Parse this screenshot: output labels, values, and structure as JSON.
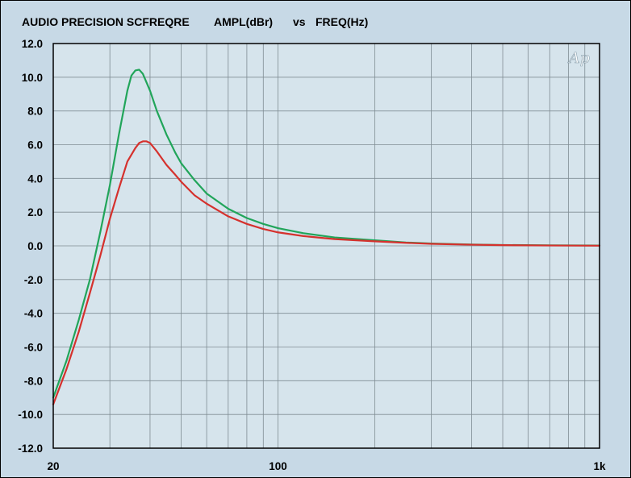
{
  "chart_data": {
    "type": "line",
    "title_parts": [
      "AUDIO PRECISION SCFREQRE",
      "AMPL(dBr)",
      "vs",
      "FREQ(Hz)"
    ],
    "logo": "Ap",
    "x_scale": "log",
    "xlim": [
      20,
      1000
    ],
    "ylim": [
      -12,
      12
    ],
    "x_tick_labels": [
      {
        "value": 20,
        "label": "20"
      },
      {
        "value": 100,
        "label": "100"
      },
      {
        "value": 1000,
        "label": "1k"
      }
    ],
    "y_ticks": [
      12,
      10,
      8,
      6,
      4,
      2,
      0,
      -2,
      -4,
      -6,
      -8,
      -10,
      -12
    ],
    "y_tick_labels": [
      "12.0",
      "10.0",
      "8.0",
      "6.0",
      "4.0",
      "2.0",
      "0.0",
      "-2.0",
      "-4.0",
      "-6.0",
      "-8.0",
      "-10.0",
      "-12.0"
    ],
    "grid": true,
    "x_grid": [
      20,
      30,
      40,
      50,
      60,
      70,
      80,
      90,
      100,
      200,
      300,
      400,
      500,
      600,
      700,
      800,
      900,
      1000
    ],
    "plot_background": "#d6e4ec",
    "grid_color": "#7f8c93",
    "series": [
      {
        "color": "#21a55a",
        "points": [
          [
            20,
            -9.0
          ],
          [
            22,
            -6.8
          ],
          [
            24,
            -4.4
          ],
          [
            26,
            -2.0
          ],
          [
            28,
            0.8
          ],
          [
            30,
            3.6
          ],
          [
            32,
            6.6
          ],
          [
            34,
            9.2
          ],
          [
            35,
            10.1
          ],
          [
            36,
            10.4
          ],
          [
            37,
            10.45
          ],
          [
            38,
            10.2
          ],
          [
            40,
            9.2
          ],
          [
            42,
            8.0
          ],
          [
            45,
            6.6
          ],
          [
            48,
            5.5
          ],
          [
            50,
            4.9
          ],
          [
            55,
            3.9
          ],
          [
            60,
            3.1
          ],
          [
            70,
            2.2
          ],
          [
            80,
            1.65
          ],
          [
            90,
            1.3
          ],
          [
            100,
            1.05
          ],
          [
            120,
            0.75
          ],
          [
            150,
            0.5
          ],
          [
            200,
            0.33
          ],
          [
            250,
            0.2
          ],
          [
            300,
            0.14
          ],
          [
            400,
            0.08
          ],
          [
            500,
            0.05
          ],
          [
            700,
            0.03
          ],
          [
            1000,
            0.02
          ]
        ]
      },
      {
        "color": "#d5312d",
        "points": [
          [
            20,
            -9.4
          ],
          [
            22,
            -7.3
          ],
          [
            24,
            -5.1
          ],
          [
            26,
            -2.8
          ],
          [
            28,
            -0.6
          ],
          [
            30,
            1.6
          ],
          [
            32,
            3.4
          ],
          [
            34,
            5.0
          ],
          [
            36,
            5.8
          ],
          [
            37,
            6.1
          ],
          [
            38,
            6.2
          ],
          [
            39,
            6.2
          ],
          [
            40,
            6.1
          ],
          [
            42,
            5.6
          ],
          [
            45,
            4.8
          ],
          [
            48,
            4.2
          ],
          [
            50,
            3.8
          ],
          [
            55,
            3.0
          ],
          [
            60,
            2.5
          ],
          [
            70,
            1.75
          ],
          [
            80,
            1.3
          ],
          [
            90,
            1.0
          ],
          [
            100,
            0.8
          ],
          [
            120,
            0.58
          ],
          [
            150,
            0.4
          ],
          [
            200,
            0.27
          ],
          [
            250,
            0.18
          ],
          [
            300,
            0.12
          ],
          [
            400,
            0.07
          ],
          [
            500,
            0.04
          ],
          [
            700,
            0.02
          ],
          [
            1000,
            0.01
          ]
        ]
      }
    ]
  }
}
